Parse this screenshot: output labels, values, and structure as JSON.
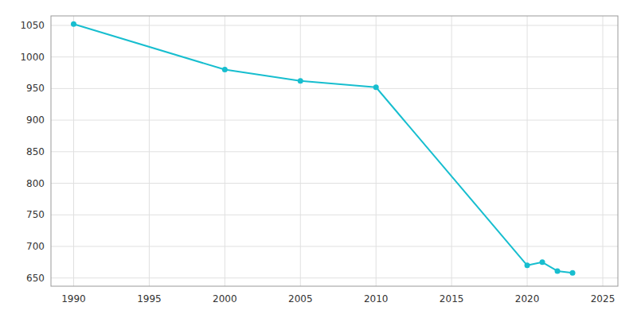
{
  "chart_data": {
    "type": "line",
    "x": [
      1990,
      2000,
      2005,
      2010,
      2020,
      2021,
      2022,
      2023
    ],
    "values": [
      1052,
      980,
      962,
      952,
      670,
      675,
      661,
      658
    ],
    "color": "#17becf",
    "marker": "circle",
    "xlim": [
      1988.5,
      2026
    ],
    "ylim": [
      637,
      1065
    ],
    "xticks": [
      1990,
      1995,
      2000,
      2005,
      2010,
      2015,
      2020,
      2025
    ],
    "yticks": [
      650,
      700,
      750,
      800,
      850,
      900,
      950,
      1000,
      1050
    ],
    "grid": true
  }
}
